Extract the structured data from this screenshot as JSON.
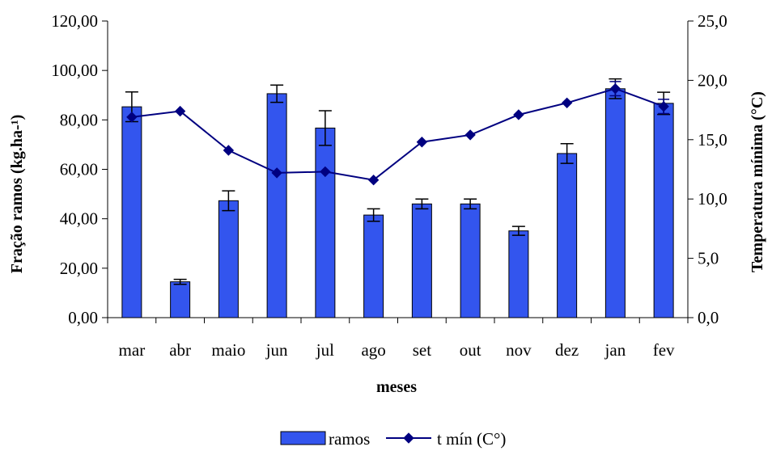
{
  "chart_data": {
    "type": "bar",
    "categories": [
      "mar",
      "abr",
      "maio",
      "jun",
      "jul",
      "ago",
      "set",
      "out",
      "nov",
      "dez",
      "jan",
      "fev"
    ],
    "series": [
      {
        "name": "ramos",
        "type": "bar",
        "axis": "left",
        "values": [
          85.3,
          14.5,
          47.3,
          90.6,
          76.7,
          41.5,
          46.0,
          46.0,
          35.1,
          66.4,
          92.6,
          86.7
        ],
        "error": [
          6.0,
          1.0,
          4.0,
          3.5,
          7.0,
          2.5,
          2.0,
          2.0,
          1.8,
          4.0,
          4.0,
          4.5
        ],
        "color": "#3355EE"
      },
      {
        "name": "t mín (C°)",
        "type": "line",
        "axis": "right",
        "values": [
          16.9,
          17.4,
          14.1,
          12.2,
          12.3,
          11.6,
          14.8,
          15.4,
          17.1,
          18.1,
          19.3,
          17.8
        ],
        "error": [
          0,
          0,
          0,
          0,
          0,
          0,
          0,
          0,
          0,
          0,
          0.6,
          0.6
        ],
        "color": "#000080"
      }
    ],
    "xlabel": "meses",
    "ylabel": "Fração ramos (kg.ha-¹)",
    "y2label": "Temperatura mínima (°C)",
    "ylim": [
      0,
      120
    ],
    "y2lim": [
      0,
      25
    ],
    "yticks": [
      "0,00",
      "20,00",
      "40,00",
      "60,00",
      "80,00",
      "100,00",
      "120,00"
    ],
    "y2ticks": [
      "0,0",
      "5,0",
      "10,0",
      "15,0",
      "20,0",
      "25,0"
    ],
    "grid": false,
    "legend": "bottom-center"
  }
}
